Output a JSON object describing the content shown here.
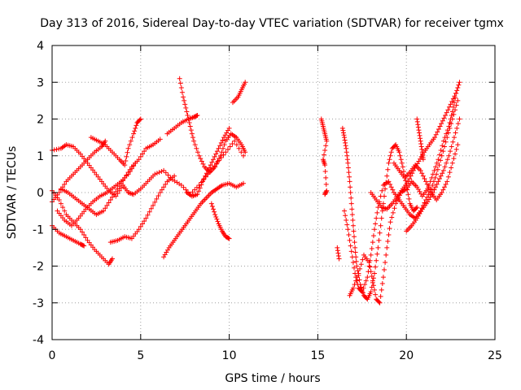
{
  "chart_data": {
    "type": "scatter",
    "title": "Day 313 of 2016, Sidereal Day-to-day VTEC variation (SDTVAR) for receiver tgmx",
    "xlabel": "GPS time / hours",
    "ylabel": "SDTVAR / TECUs",
    "xlim": [
      0,
      25
    ],
    "ylim": [
      -4,
      4
    ],
    "xticks": [
      0,
      5,
      10,
      15,
      20,
      25
    ],
    "yticks": [
      -4,
      -3,
      -2,
      -1,
      0,
      1,
      2,
      3,
      4
    ],
    "xtick_labels": [
      "0",
      "5",
      "10",
      "15",
      "20",
      "25"
    ],
    "ytick_labels": [
      "-4",
      "-3",
      "-2",
      "-1",
      "0",
      "1",
      "2",
      "3",
      "4"
    ],
    "grid": true,
    "marker": "plus",
    "color": "#ff0000",
    "series": [
      {
        "values": [
          [
            0.0,
            1.15
          ],
          [
            0.5,
            1.2
          ],
          [
            0.8,
            1.3
          ],
          [
            1.2,
            1.25
          ],
          [
            1.6,
            1.05
          ],
          [
            2.0,
            0.8
          ],
          [
            2.4,
            0.55
          ],
          [
            2.8,
            0.3
          ],
          [
            3.2,
            0.05
          ],
          [
            3.6,
            -0.1
          ],
          [
            4.0,
            0.2
          ],
          [
            4.3,
            0.0
          ],
          [
            4.6,
            -0.05
          ],
          [
            5.0,
            0.1
          ],
          [
            5.4,
            0.3
          ],
          [
            5.8,
            0.5
          ],
          [
            6.3,
            0.6
          ],
          [
            6.8,
            0.35
          ],
          [
            7.3,
            0.2
          ],
          [
            7.8,
            -0.05
          ],
          [
            8.3,
            0.2
          ],
          [
            8.8,
            0.5
          ],
          [
            9.3,
            0.8
          ],
          [
            9.8,
            1.1
          ],
          [
            10.3,
            1.4
          ],
          [
            10.8,
            1.0
          ]
        ]
      },
      {
        "values": [
          [
            0.0,
            0.05
          ],
          [
            0.4,
            -0.2
          ],
          [
            0.8,
            -0.6
          ],
          [
            1.2,
            -0.8
          ],
          [
            1.6,
            -1.0
          ],
          [
            2.0,
            -1.3
          ],
          [
            2.4,
            -1.55
          ],
          [
            2.8,
            -1.75
          ],
          [
            3.2,
            -1.95
          ],
          [
            3.4,
            -1.8
          ]
        ]
      },
      {
        "values": [
          [
            0.0,
            -0.9
          ],
          [
            0.4,
            -1.1
          ],
          [
            0.8,
            -1.2
          ],
          [
            1.2,
            -1.3
          ],
          [
            1.6,
            -1.4
          ],
          [
            1.8,
            -1.45
          ]
        ]
      },
      {
        "values": [
          [
            0.0,
            -0.25
          ],
          [
            0.4,
            0.0
          ],
          [
            0.8,
            0.3
          ],
          [
            1.2,
            0.5
          ],
          [
            1.6,
            0.7
          ],
          [
            2.0,
            0.9
          ],
          [
            2.4,
            1.1
          ],
          [
            2.8,
            1.25
          ],
          [
            3.0,
            1.4
          ]
        ]
      },
      {
        "values": [
          [
            0.3,
            -0.5
          ],
          [
            0.7,
            -0.75
          ],
          [
            1.1,
            -0.9
          ],
          [
            1.5,
            -0.7
          ],
          [
            1.9,
            -0.45
          ],
          [
            2.3,
            -0.25
          ],
          [
            2.7,
            -0.1
          ],
          [
            3.1,
            0.0
          ],
          [
            3.5,
            0.15
          ],
          [
            3.9,
            0.3
          ],
          [
            4.3,
            0.5
          ],
          [
            4.7,
            0.8
          ]
        ]
      },
      {
        "values": [
          [
            0.5,
            0.1
          ],
          [
            0.9,
            0.0
          ],
          [
            1.3,
            -0.15
          ],
          [
            1.7,
            -0.3
          ],
          [
            2.1,
            -0.45
          ],
          [
            2.5,
            -0.6
          ],
          [
            2.9,
            -0.5
          ],
          [
            3.3,
            -0.2
          ],
          [
            3.7,
            0.1
          ],
          [
            4.1,
            0.4
          ],
          [
            4.5,
            0.7
          ],
          [
            4.9,
            0.9
          ],
          [
            5.3,
            1.2
          ],
          [
            5.7,
            1.3
          ],
          [
            6.1,
            1.45
          ]
        ]
      },
      {
        "values": [
          [
            2.2,
            1.5
          ],
          [
            2.6,
            1.4
          ],
          [
            3.0,
            1.3
          ],
          [
            3.4,
            1.1
          ],
          [
            3.8,
            0.9
          ],
          [
            4.1,
            0.75
          ],
          [
            4.3,
            1.2
          ],
          [
            4.6,
            1.6
          ],
          [
            4.8,
            1.9
          ],
          [
            5.0,
            2.0
          ]
        ]
      },
      {
        "values": [
          [
            3.3,
            -1.35
          ],
          [
            3.7,
            -1.3
          ],
          [
            4.1,
            -1.2
          ],
          [
            4.5,
            -1.25
          ],
          [
            4.9,
            -1.0
          ],
          [
            5.3,
            -0.7
          ],
          [
            5.7,
            -0.35
          ],
          [
            6.1,
            0.0
          ],
          [
            6.5,
            0.3
          ],
          [
            6.9,
            0.45
          ]
        ]
      },
      {
        "values": [
          [
            6.3,
            -1.75
          ],
          [
            6.6,
            -1.5
          ],
          [
            6.9,
            -1.3
          ],
          [
            7.2,
            -1.1
          ],
          [
            7.5,
            -0.9
          ],
          [
            7.8,
            -0.7
          ],
          [
            8.1,
            -0.5
          ],
          [
            8.4,
            -0.3
          ],
          [
            8.7,
            -0.15
          ],
          [
            9.0,
            0.0
          ],
          [
            9.3,
            0.1
          ],
          [
            9.6,
            0.2
          ],
          [
            10.0,
            0.25
          ],
          [
            10.4,
            0.15
          ],
          [
            10.8,
            0.25
          ]
        ]
      },
      {
        "values": [
          [
            6.5,
            1.6
          ],
          [
            6.9,
            1.75
          ],
          [
            7.3,
            1.9
          ],
          [
            7.7,
            2.0
          ],
          [
            8.0,
            2.05
          ],
          [
            8.2,
            2.1
          ]
        ]
      },
      {
        "values": [
          [
            7.2,
            3.1
          ],
          [
            7.4,
            2.6
          ],
          [
            7.6,
            2.2
          ],
          [
            7.8,
            1.8
          ],
          [
            8.0,
            1.4
          ],
          [
            8.3,
            1.0
          ],
          [
            8.6,
            0.7
          ],
          [
            8.9,
            0.55
          ],
          [
            9.2,
            0.7
          ],
          [
            9.5,
            1.0
          ],
          [
            9.8,
            1.4
          ],
          [
            10.1,
            1.6
          ],
          [
            10.4,
            1.5
          ],
          [
            10.7,
            1.3
          ],
          [
            10.9,
            1.1
          ]
        ]
      },
      {
        "values": [
          [
            7.6,
            0.0
          ],
          [
            7.9,
            -0.1
          ],
          [
            8.2,
            -0.05
          ],
          [
            8.5,
            0.3
          ],
          [
            8.8,
            0.6
          ],
          [
            9.1,
            0.9
          ],
          [
            9.4,
            1.2
          ],
          [
            9.7,
            1.5
          ],
          [
            10.0,
            1.75
          ]
        ]
      },
      {
        "values": [
          [
            9.0,
            -0.3
          ],
          [
            9.2,
            -0.6
          ],
          [
            9.4,
            -0.85
          ],
          [
            9.6,
            -1.05
          ],
          [
            9.8,
            -1.2
          ],
          [
            10.0,
            -1.25
          ]
        ]
      },
      {
        "values": [
          [
            10.2,
            2.45
          ],
          [
            10.5,
            2.6
          ],
          [
            10.7,
            2.8
          ],
          [
            10.9,
            3.0
          ]
        ]
      },
      {
        "values": [
          [
            15.2,
            2.0
          ],
          [
            15.3,
            1.8
          ],
          [
            15.4,
            1.6
          ],
          [
            15.5,
            1.4
          ],
          [
            15.3,
            0.9
          ],
          [
            15.4,
            0.75
          ],
          [
            15.5,
            0.05
          ],
          [
            15.4,
            -0.05
          ]
        ]
      },
      {
        "values": [
          [
            16.1,
            -1.5
          ],
          [
            16.2,
            -1.8
          ]
        ]
      },
      {
        "values": [
          [
            16.4,
            1.75
          ],
          [
            16.5,
            1.5
          ],
          [
            16.6,
            1.2
          ],
          [
            16.7,
            0.8
          ],
          [
            16.8,
            0.3
          ],
          [
            16.9,
            -0.3
          ],
          [
            17.0,
            -0.9
          ],
          [
            17.1,
            -1.5
          ],
          [
            17.2,
            -2.0
          ],
          [
            17.4,
            -2.5
          ],
          [
            17.6,
            -2.8
          ],
          [
            17.8,
            -2.9
          ],
          [
            18.0,
            -2.7
          ],
          [
            18.2,
            -2.2
          ],
          [
            18.4,
            -1.5
          ],
          [
            18.6,
            -0.7
          ],
          [
            18.8,
            0.1
          ],
          [
            19.0,
            0.8
          ],
          [
            19.2,
            1.2
          ],
          [
            19.4,
            1.3
          ],
          [
            19.6,
            1.1
          ],
          [
            19.8,
            0.7
          ],
          [
            20.0,
            0.2
          ],
          [
            20.2,
            -0.3
          ],
          [
            20.4,
            -0.5
          ],
          [
            20.6,
            -0.4
          ]
        ]
      },
      {
        "values": [
          [
            16.5,
            -0.5
          ],
          [
            16.7,
            -1.0
          ],
          [
            16.9,
            -1.6
          ],
          [
            17.1,
            -2.2
          ],
          [
            17.3,
            -2.6
          ],
          [
            17.5,
            -2.7
          ],
          [
            17.8,
            -2.3
          ],
          [
            18.0,
            -1.7
          ],
          [
            18.2,
            -1.0
          ],
          [
            18.4,
            -0.4
          ],
          [
            18.7,
            0.2
          ],
          [
            19.0,
            0.3
          ],
          [
            19.3,
            0.0
          ],
          [
            19.6,
            -0.2
          ],
          [
            19.9,
            -0.4
          ],
          [
            20.2,
            -0.6
          ],
          [
            20.5,
            -0.7
          ],
          [
            20.8,
            -0.5
          ],
          [
            21.1,
            -0.2
          ],
          [
            21.4,
            0.1
          ],
          [
            21.7,
            0.5
          ],
          [
            22.0,
            1.0
          ],
          [
            22.3,
            1.5
          ],
          [
            22.6,
            2.0
          ],
          [
            22.9,
            2.5
          ]
        ]
      },
      {
        "values": [
          [
            16.8,
            -2.8
          ],
          [
            17.0,
            -2.6
          ],
          [
            17.3,
            -2.2
          ],
          [
            17.6,
            -1.7
          ],
          [
            17.9,
            -1.9
          ],
          [
            18.1,
            -2.4
          ],
          [
            18.3,
            -2.9
          ],
          [
            18.5,
            -3.0
          ],
          [
            18.7,
            -2.3
          ],
          [
            18.9,
            -1.5
          ],
          [
            19.1,
            -0.8
          ],
          [
            19.4,
            -0.3
          ],
          [
            19.7,
            0.0
          ],
          [
            20.0,
            0.1
          ],
          [
            20.3,
            0.3
          ],
          [
            20.6,
            0.15
          ],
          [
            20.9,
            -0.1
          ],
          [
            21.2,
            0.1
          ],
          [
            21.5,
            0.5
          ],
          [
            21.8,
            0.9
          ],
          [
            22.1,
            1.4
          ],
          [
            22.4,
            1.8
          ],
          [
            22.6,
            2.2
          ],
          [
            22.8,
            2.7
          ],
          [
            23.0,
            3.0
          ]
        ]
      },
      {
        "values": [
          [
            18.0,
            0.0
          ],
          [
            18.3,
            -0.2
          ],
          [
            18.6,
            -0.4
          ],
          [
            18.9,
            -0.45
          ],
          [
            19.2,
            -0.3
          ],
          [
            19.5,
            -0.1
          ],
          [
            19.8,
            0.1
          ],
          [
            20.1,
            0.3
          ],
          [
            20.4,
            0.6
          ],
          [
            20.7,
            0.85
          ],
          [
            21.0,
            1.1
          ],
          [
            21.3,
            1.3
          ],
          [
            21.6,
            1.5
          ],
          [
            21.9,
            1.8
          ],
          [
            22.2,
            2.1
          ],
          [
            22.5,
            2.4
          ],
          [
            22.8,
            2.7
          ]
        ]
      },
      {
        "values": [
          [
            20.6,
            2.0
          ],
          [
            20.7,
            1.7
          ],
          [
            20.8,
            1.4
          ],
          [
            20.9,
            1.1
          ],
          [
            20.95,
            0.9
          ]
        ]
      },
      {
        "values": [
          [
            20.0,
            -1.05
          ],
          [
            20.3,
            -0.9
          ],
          [
            20.6,
            -0.7
          ],
          [
            20.9,
            -0.45
          ],
          [
            21.2,
            -0.25
          ],
          [
            21.5,
            0.0
          ],
          [
            21.8,
            0.3
          ],
          [
            22.1,
            0.6
          ],
          [
            22.4,
            1.0
          ],
          [
            22.7,
            1.5
          ],
          [
            23.0,
            2.0
          ]
        ]
      },
      {
        "values": [
          [
            19.3,
            0.8
          ],
          [
            19.6,
            0.6
          ],
          [
            19.9,
            0.4
          ],
          [
            20.2,
            0.55
          ],
          [
            20.5,
            0.75
          ],
          [
            20.8,
            0.6
          ],
          [
            21.1,
            0.3
          ],
          [
            21.4,
            0.0
          ],
          [
            21.7,
            -0.2
          ],
          [
            22.0,
            0.0
          ],
          [
            22.3,
            0.3
          ],
          [
            22.6,
            0.8
          ],
          [
            22.9,
            1.3
          ]
        ]
      }
    ]
  }
}
